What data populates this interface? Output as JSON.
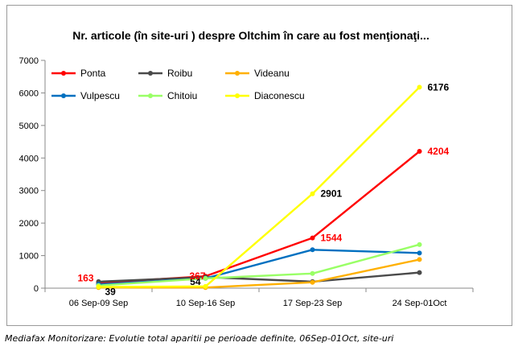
{
  "caption": "Mediafax Monitorizare: Evolutie total aparitii pe perioade definite, 06Sep-01Oct, site-uri",
  "chart_data": {
    "type": "line",
    "title": "Nr. articole (în site-uri )  despre Oltchim în care au fost menţionaţi...",
    "xlabel": "",
    "ylabel": "",
    "categories": [
      "06 Sep-09 Sep",
      "10 Sep-16 Sep",
      "17 Sep-23 Sep",
      "24 Sep-01Oct"
    ],
    "ylim": [
      0,
      7000
    ],
    "yticks": [
      0,
      1000,
      2000,
      3000,
      4000,
      5000,
      6000,
      7000
    ],
    "grid": false,
    "legend_position": "top-left",
    "series": [
      {
        "name": "Ponta",
        "color": "#ff0000",
        "values": [
          163,
          367,
          1544,
          4204
        ]
      },
      {
        "name": "Roibu",
        "color": "#4a4a4a",
        "values": [
          200,
          340,
          200,
          480
        ]
      },
      {
        "name": "Videanu",
        "color": "#ffb000",
        "values": [
          20,
          20,
          180,
          880
        ]
      },
      {
        "name": "Vulpescu",
        "color": "#0070c0",
        "values": [
          120,
          300,
          1180,
          1080
        ]
      },
      {
        "name": "Chitoiu",
        "color": "#99ff66",
        "values": [
          80,
          300,
          450,
          1340
        ]
      },
      {
        "name": "Diaconescu",
        "color": "#ffff00",
        "values": [
          39,
          54,
          2901,
          6176
        ]
      }
    ],
    "data_labels": [
      {
        "series": "Ponta",
        "index": 0,
        "text": "163",
        "color": "#ff0000",
        "side": "left"
      },
      {
        "series": "Diaconescu",
        "index": 0,
        "text": "39",
        "color": "#000000",
        "side": "right"
      },
      {
        "series": "Diaconescu",
        "index": 1,
        "text": "54",
        "color": "#000000",
        "side": "left"
      },
      {
        "series": "Ponta",
        "index": 1,
        "text": "367",
        "color": "#ff0000",
        "side": "below"
      },
      {
        "series": "Ponta",
        "index": 2,
        "text": "1544",
        "color": "#ff0000",
        "side": "right"
      },
      {
        "series": "Diaconescu",
        "index": 2,
        "text": "2901",
        "color": "#000000",
        "side": "right"
      },
      {
        "series": "Ponta",
        "index": 3,
        "text": "4204",
        "color": "#ff0000",
        "side": "right"
      },
      {
        "series": "Diaconescu",
        "index": 3,
        "text": "6176",
        "color": "#000000",
        "side": "right"
      }
    ]
  }
}
